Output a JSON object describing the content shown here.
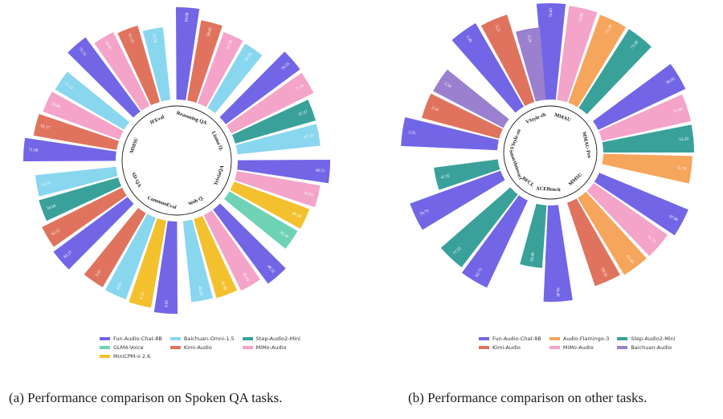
{
  "colors": {
    "Fun-Audio-Chat-8B": "#7266e6",
    "Baichuan-Omni-1.5": "#89d6ef",
    "Step-Audio2-Mini": "#3aa19a",
    "GLM4-Voice": "#6dd3b4",
    "Kimi-Audio": "#e0735e",
    "MiMo-Audio": "#f4a3c9",
    "MiniCPM-o 2.6": "#f3c02e",
    "Audio-Flamingo-3": "#f6a55c",
    "Baichuan-Audio": "#9b80cf"
  },
  "legend_a": [
    "Fun-Audio-Chat-8B",
    "Baichuan-Omni-1.5",
    "Step-Audio2-Mini",
    "GLM4-Voice",
    "Kimi-Audio",
    "MiMo-Audio",
    "MiniCPM-o 2.6"
  ],
  "legend_b": [
    "Fun-Audio-Chat-8B",
    "Audio-Flamingo-3",
    "Step-Audio2-Mini",
    "Kimi-Audio",
    "MiMo-Audio",
    "Baichuan-Audio"
  ],
  "captions": {
    "a": "(a) Performance comparison on Spoken QA tasks.",
    "b": "(b) Performance comparison on other tasks."
  },
  "chart_data": [
    {
      "type": "bar",
      "subtype": "circular-grouped-bar",
      "title": "",
      "groups": [
        {
          "name": "Reasoning QA",
          "bars": [
            {
              "series": "Fun-Audio-Chat-8B",
              "value": 69.88
            },
            {
              "series": "Kimi-Audio",
              "value": 58.02
            },
            {
              "series": "MiMo-Audio",
              "value": 51.98
            },
            {
              "series": "Baichuan-Omni-1.5",
              "value": 50.59
            }
          ]
        },
        {
          "name": "Llama Q.",
          "bars": [
            {
              "series": "Fun-Audio-Chat-8B",
              "value": 78.33
            },
            {
              "series": "MiMo-Audio",
              "value": 77.33
            },
            {
              "series": "Step-Audio2-Mini",
              "value": 67.67
            },
            {
              "series": "Baichuan-Omni-1.5",
              "value": 67.33
            }
          ]
        },
        {
          "name": "TriviaQA",
          "bars": [
            {
              "series": "Fun-Audio-Chat-8B",
              "value": 49.51
            },
            {
              "series": "MiMo-Audio",
              "value": 43.63
            },
            {
              "series": "MiniCPM-o 2.6",
              "value": 40.2
            },
            {
              "series": "GLM4-Voice",
              "value": 39.2
            }
          ]
        },
        {
          "name": "Web Q.",
          "bars": [
            {
              "series": "Fun-Audio-Chat-8B",
              "value": 48.52
            },
            {
              "series": "MiMo-Audio",
              "value": 42.42
            },
            {
              "series": "MiniCPM-o 2.6",
              "value": 40.9
            },
            {
              "series": "Baichuan-Omni-1.5",
              "value": 40.2
            }
          ]
        },
        {
          "name": "CommonEval",
          "bars": [
            {
              "series": "Fun-Audio-Chat-8B",
              "value": 4.42
            },
            {
              "series": "MiniCPM-o 2.6",
              "value": 4.15
            },
            {
              "series": "Baichuan-Omni-1.5",
              "value": 4.05
            },
            {
              "series": "Kimi-Audio",
              "value": 3.97
            }
          ]
        },
        {
          "name": "SD-QA",
          "bars": [
            {
              "series": "Fun-Audio-Chat-8B",
              "value": 66.27
            },
            {
              "series": "Kimi-Audio",
              "value": 63.12
            },
            {
              "series": "Step-Audio2-Mini",
              "value": 56.06
            },
            {
              "series": "Baichuan-Omni-1.5",
              "value": 54.75
            }
          ]
        },
        {
          "name": "MMSU",
          "bars": [
            {
              "series": "Fun-Audio-Chat-8B",
              "value": 71.08
            },
            {
              "series": "Kimi-Audio",
              "value": 62.17
            },
            {
              "series": "MiMo-Audio",
              "value": 59.0
            },
            {
              "series": "Baichuan-Omni-1.5",
              "value": 57.23
            }
          ]
        },
        {
          "name": "IFEval",
          "bars": [
            {
              "series": "Fun-Audio-Chat-8B",
              "value": 76.32
            },
            {
              "series": "MiMo-Audio",
              "value": 64.45
            },
            {
              "series": "Kimi-Audio",
              "value": 61.1
            },
            {
              "series": "Baichuan-Omni-1.5",
              "value": 53.34
            }
          ]
        }
      ]
    },
    {
      "type": "bar",
      "subtype": "circular-grouped-bar",
      "title": "",
      "groups": [
        {
          "name": "MMAU",
          "bars": [
            {
              "series": "Fun-Audio-Chat-8B",
              "value": 76.6
            },
            {
              "series": "MiMo-Audio",
              "value": 74.9
            },
            {
              "series": "Audio-Flamingo-3",
              "value": 73.3
            },
            {
              "series": "Step-Audio2-Mini",
              "value": 73.2
            }
          ]
        },
        {
          "name": "MMAU-Pro",
          "bars": [
            {
              "series": "Fun-Audio-Chat-8B",
              "value": 58.0
            },
            {
              "series": "MiMo-Audio",
              "value": 53.4
            },
            {
              "series": "Step-Audio2-Mini",
              "value": 53.2
            },
            {
              "series": "Audio-Flamingo-3",
              "value": 51.7
            }
          ]
        },
        {
          "name": "MMSU",
          "bars": [
            {
              "series": "Fun-Audio-Chat-8B",
              "value": 67.8
            },
            {
              "series": "MiMo-Audio",
              "value": 61.7
            },
            {
              "series": "Audio-Flamingo-3",
              "value": 61.4
            },
            {
              "series": "Kimi-Audio",
              "value": 59.3
            }
          ]
        },
        {
          "name": "ACEBench",
          "bars": [
            {
              "series": "Fun-Audio-Chat-8B",
              "value": 76.4
            },
            {
              "series": "Step-Audio2-Mini",
              "value": 38.4
            }
          ]
        },
        {
          "name": "BFCL",
          "bars": [
            {
              "series": "Fun-Audio-Chat-8B",
              "value": 82.73
            },
            {
              "series": "Step-Audio2-Mini",
              "value": 77.52
            }
          ]
        },
        {
          "name": "SmartInteract",
          "bars": [
            {
              "series": "Fun-Audio-Chat-8B",
              "value": 79.79
            },
            {
              "series": "Step-Audio2-Mini",
              "value": 41.92
            }
          ]
        },
        {
          "name": "VStyle-zn",
          "bars": [
            {
              "series": "Fun-Audio-Chat-8B",
              "value": 3.35
            },
            {
              "series": "Kimi-Audio",
              "value": 2.54
            },
            {
              "series": "Baichuan-Audio",
              "value": 2.5
            }
          ]
        },
        {
          "name": "VStyle-zh",
          "bars": [
            {
              "series": "Fun-Audio-Chat-8B",
              "value": 3.46
            },
            {
              "series": "Kimi-Audio",
              "value": 3.21
            },
            {
              "series": "Baichuan-Audio",
              "value": 2.24
            }
          ]
        }
      ]
    }
  ]
}
